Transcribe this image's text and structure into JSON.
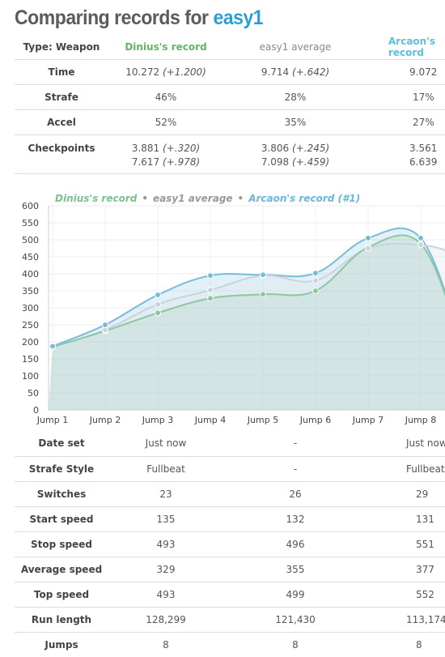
{
  "title": {
    "prefix": "Comparing records for ",
    "map": "easy1"
  },
  "top_table": {
    "type_label": "Type: Weapon",
    "col1": "Dinius's record",
    "col2": "easy1 average",
    "col3": "Arcaon's record",
    "rows": [
      {
        "label": "Time",
        "c1": "10.272",
        "c1d": "(+1.200)",
        "c2": "9.714",
        "c2d": "(+.642)",
        "c3": "9.072"
      },
      {
        "label": "Strafe",
        "c1": "46%",
        "c2": "28%",
        "c3": "17%"
      },
      {
        "label": "Accel",
        "c1": "52%",
        "c2": "35%",
        "c3": "27%"
      }
    ],
    "checkpoints": {
      "label": "Checkpoints",
      "c1": [
        {
          "v": "3.881",
          "d": "(+.320)"
        },
        {
          "v": "7.617",
          "d": "(+.978)"
        }
      ],
      "c2": [
        {
          "v": "3.806",
          "d": "(+.245)"
        },
        {
          "v": "7.098",
          "d": "(+.459)"
        }
      ],
      "c3": [
        {
          "v": "3.561"
        },
        {
          "v": "6.639"
        }
      ]
    }
  },
  "chart_data": {
    "type": "line",
    "categories": [
      "Jump 1",
      "Jump 2",
      "Jump 3",
      "Jump 4",
      "Jump 5",
      "Jump 6",
      "Jump 7",
      "Jump 8"
    ],
    "ylim": [
      0,
      600
    ],
    "yticks": [
      "0",
      "50",
      "100",
      "150",
      "200",
      "250",
      "300",
      "350",
      "400",
      "450",
      "500",
      "550",
      "600"
    ],
    "grid": true,
    "legend": "top-left",
    "series": [
      {
        "name": "Dinius's record",
        "color": "#8cc7a0",
        "values": [
          185,
          232,
          285,
          328,
          340,
          350,
          478,
          488
        ]
      },
      {
        "name": "easy1 average",
        "color": "#c9d3dd",
        "values": [
          185,
          235,
          310,
          352,
          395,
          380,
          475,
          485
        ]
      },
      {
        "name": "Arcaon's record (#1)",
        "color": "#79bcd9",
        "values": [
          187,
          250,
          338,
          395,
          397,
          402,
          505,
          505
        ]
      }
    ]
  },
  "bottom_table": {
    "rows": [
      {
        "label": "Date set",
        "c1": "Just now",
        "c2": "-",
        "c3": "Just now"
      },
      {
        "label": "Strafe Style",
        "c1": "Fullbeat",
        "c2": "-",
        "c3": "Fullbeat"
      },
      {
        "label": "Switches",
        "c1": "23",
        "c2": "26",
        "c3": "29"
      },
      {
        "label": "Start speed",
        "c1": "135",
        "c2": "132",
        "c3": "131"
      },
      {
        "label": "Stop speed",
        "c1": "493",
        "c2": "496",
        "c3": "551"
      },
      {
        "label": "Average speed",
        "c1": "329",
        "c2": "355",
        "c3": "377"
      },
      {
        "label": "Top speed",
        "c1": "493",
        "c2": "499",
        "c3": "552"
      },
      {
        "label": "Run length",
        "c1": "128,299",
        "c2": "121,430",
        "c3": "113,174"
      },
      {
        "label": "Jumps",
        "c1": "8",
        "c2": "8",
        "c3": "8"
      }
    ]
  }
}
